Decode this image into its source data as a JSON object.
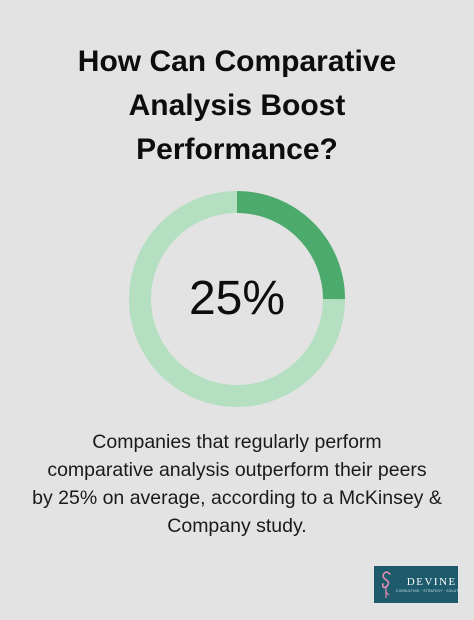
{
  "title_lines": [
    "How Can Comparative",
    "Analysis Boost",
    "Performance?"
  ],
  "chart_data": {
    "type": "pie",
    "style": "donut",
    "values": [
      25,
      75
    ],
    "center_label": "25%",
    "colors": [
      "#4caa6c",
      "#b4dfc1"
    ]
  },
  "description_lines": [
    "Companies that regularly perform",
    "comparative analysis outperform their peers",
    "by 25% on average, according to a McKinsey &",
    "Company study."
  ],
  "logo": {
    "name": "DEVINE",
    "tagline": "CONSULTING · STRATEGY · SOLUTIONS",
    "background": "#1d5a6c",
    "icon": "flamingo-icon"
  },
  "colors": {
    "background": "#e3e3e3",
    "accent": "#4caa6c",
    "track": "#b4dfc1"
  }
}
